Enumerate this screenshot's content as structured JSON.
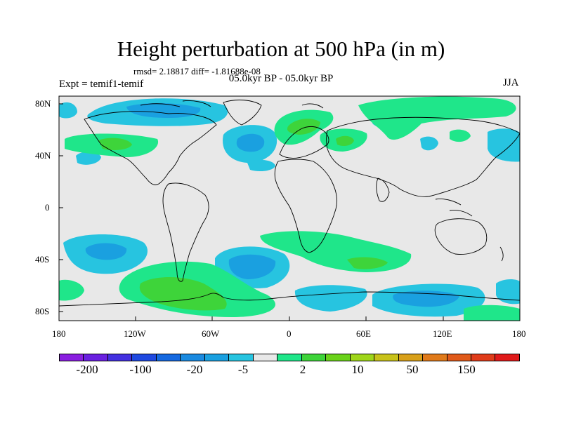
{
  "title": "Height perturbation at 500 hPa (in m)",
  "stats": "rmsd= 2.18817 diff= -1.81688e-08",
  "period": "05.0kyr BP - 05.0kyr BP",
  "expt": "Expt = temif1-temif",
  "season": "JJA",
  "lat_labels": [
    "80N",
    "40N",
    "0",
    "40S",
    "80S"
  ],
  "lon_labels": [
    "180",
    "120W",
    "60W",
    "0",
    "60E",
    "120E",
    "180"
  ],
  "colors": {
    "background_mask": "#e8e8e8",
    "light_blue": "#27c4e0",
    "mid_blue": "#1aa0e0",
    "dark_blue": "#1569e0",
    "light_green": "#1fe68a",
    "green": "#3ed43a",
    "yellow_green": "#9fd61a",
    "coast": "#000000"
  },
  "colorbar": {
    "colors": [
      "#8a1ee0",
      "#6a20e0",
      "#4330e0",
      "#1f49e0",
      "#1569e0",
      "#1a8ae0",
      "#1aa0e0",
      "#27c4e0",
      "#e8e8e8",
      "#1fe68a",
      "#3ed43a",
      "#6ad21a",
      "#9fd61a",
      "#c8c21a",
      "#d8a01a",
      "#e07a1a",
      "#e05a1a",
      "#e03c1a",
      "#e01a1a"
    ],
    "labels": [
      "-200",
      "-100",
      "-20",
      "-5",
      "2",
      "10",
      "50",
      "150"
    ]
  }
}
